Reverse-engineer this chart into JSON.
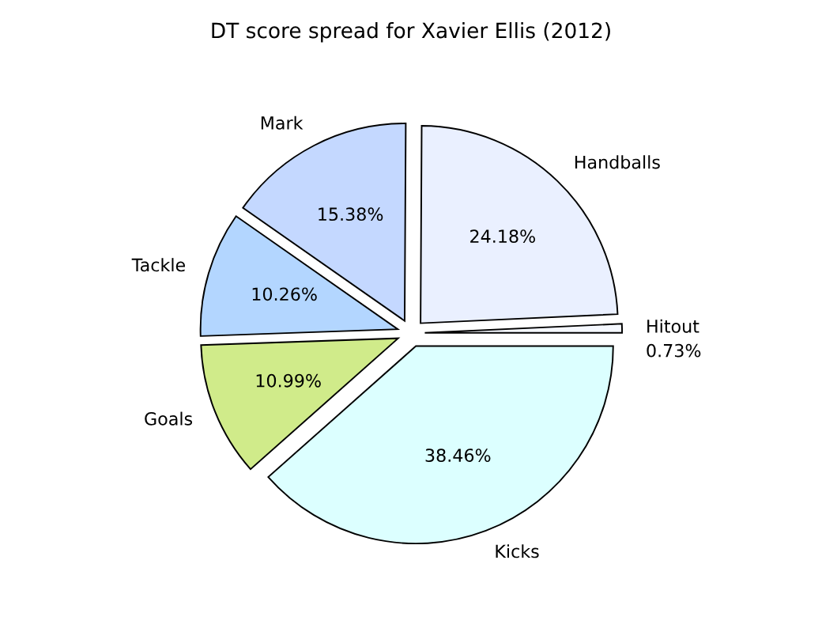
{
  "chart_data": {
    "type": "pie",
    "title": "DT score spread for Xavier Ellis (2012)",
    "categories": [
      "Hitout",
      "Handballs",
      "Mark",
      "Tackle",
      "Goals",
      "Kicks"
    ],
    "values": [
      0.73,
      24.18,
      15.38,
      10.26,
      10.99,
      38.46
    ],
    "value_labels": [
      "0.73%",
      "24.18%",
      "15.38%",
      "10.26%",
      "10.99%",
      "38.46%"
    ],
    "colors": [
      "#f5f8ff",
      "#eaf0ff",
      "#c4d8ff",
      "#b3d6ff",
      "#d0eb8a",
      "#dcffff"
    ],
    "legend": false
  }
}
